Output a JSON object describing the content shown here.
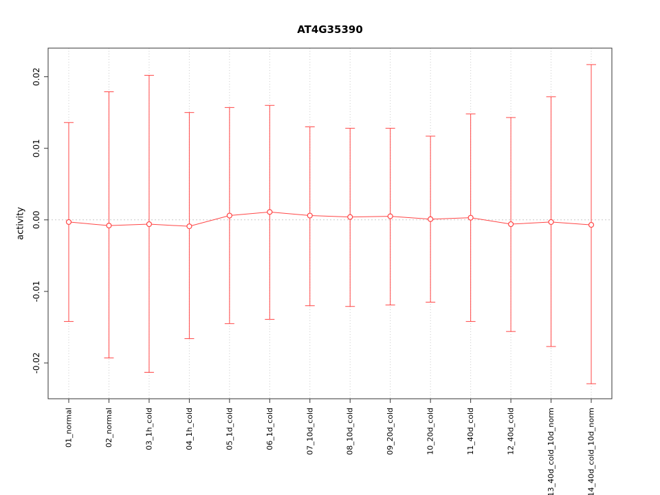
{
  "chart": {
    "title": "AT4G35390",
    "ylabel": "activity"
  },
  "chart_data": {
    "type": "line",
    "subtype": "means-with-error-bars",
    "title": "AT4G35390",
    "xlabel": "",
    "ylabel": "activity",
    "ylim": [
      -0.025,
      0.024
    ],
    "yticks": [
      -0.02,
      -0.01,
      0.0,
      0.01,
      0.02
    ],
    "grid": "dotted vertical line at each category, dotted horizontal line at y=0",
    "legend": "none",
    "series_color": "#ff4444",
    "grid_color": "#c8c8c8",
    "categories": [
      "01_normal",
      "02_normal",
      "03_1h_cold",
      "04_1h_cold",
      "05_1d_cold",
      "06_1d_cold",
      "07_10d_cold",
      "08_10d_cold",
      "09_20d_cold",
      "10_20d_cold",
      "11_40d_cold",
      "12_40d_cold",
      "13_40d_cold_10d_norm",
      "14_40d_cold_10d_norm"
    ],
    "means": [
      -0.0003,
      -0.0008,
      -0.0006,
      -0.0009,
      0.0006,
      0.0011,
      0.0006,
      0.0004,
      0.0005,
      0.0001,
      0.0003,
      -0.0006,
      -0.0003,
      -0.0007
    ],
    "upper": [
      0.0136,
      0.0179,
      0.0202,
      0.015,
      0.0157,
      0.016,
      0.013,
      0.0128,
      0.0128,
      0.0117,
      0.0148,
      0.0143,
      0.0172,
      0.0217
    ],
    "lower": [
      -0.0142,
      -0.0193,
      -0.0213,
      -0.0166,
      -0.0145,
      -0.0139,
      -0.012,
      -0.0121,
      -0.0119,
      -0.0115,
      -0.0142,
      -0.0156,
      -0.0177,
      -0.0229
    ]
  }
}
